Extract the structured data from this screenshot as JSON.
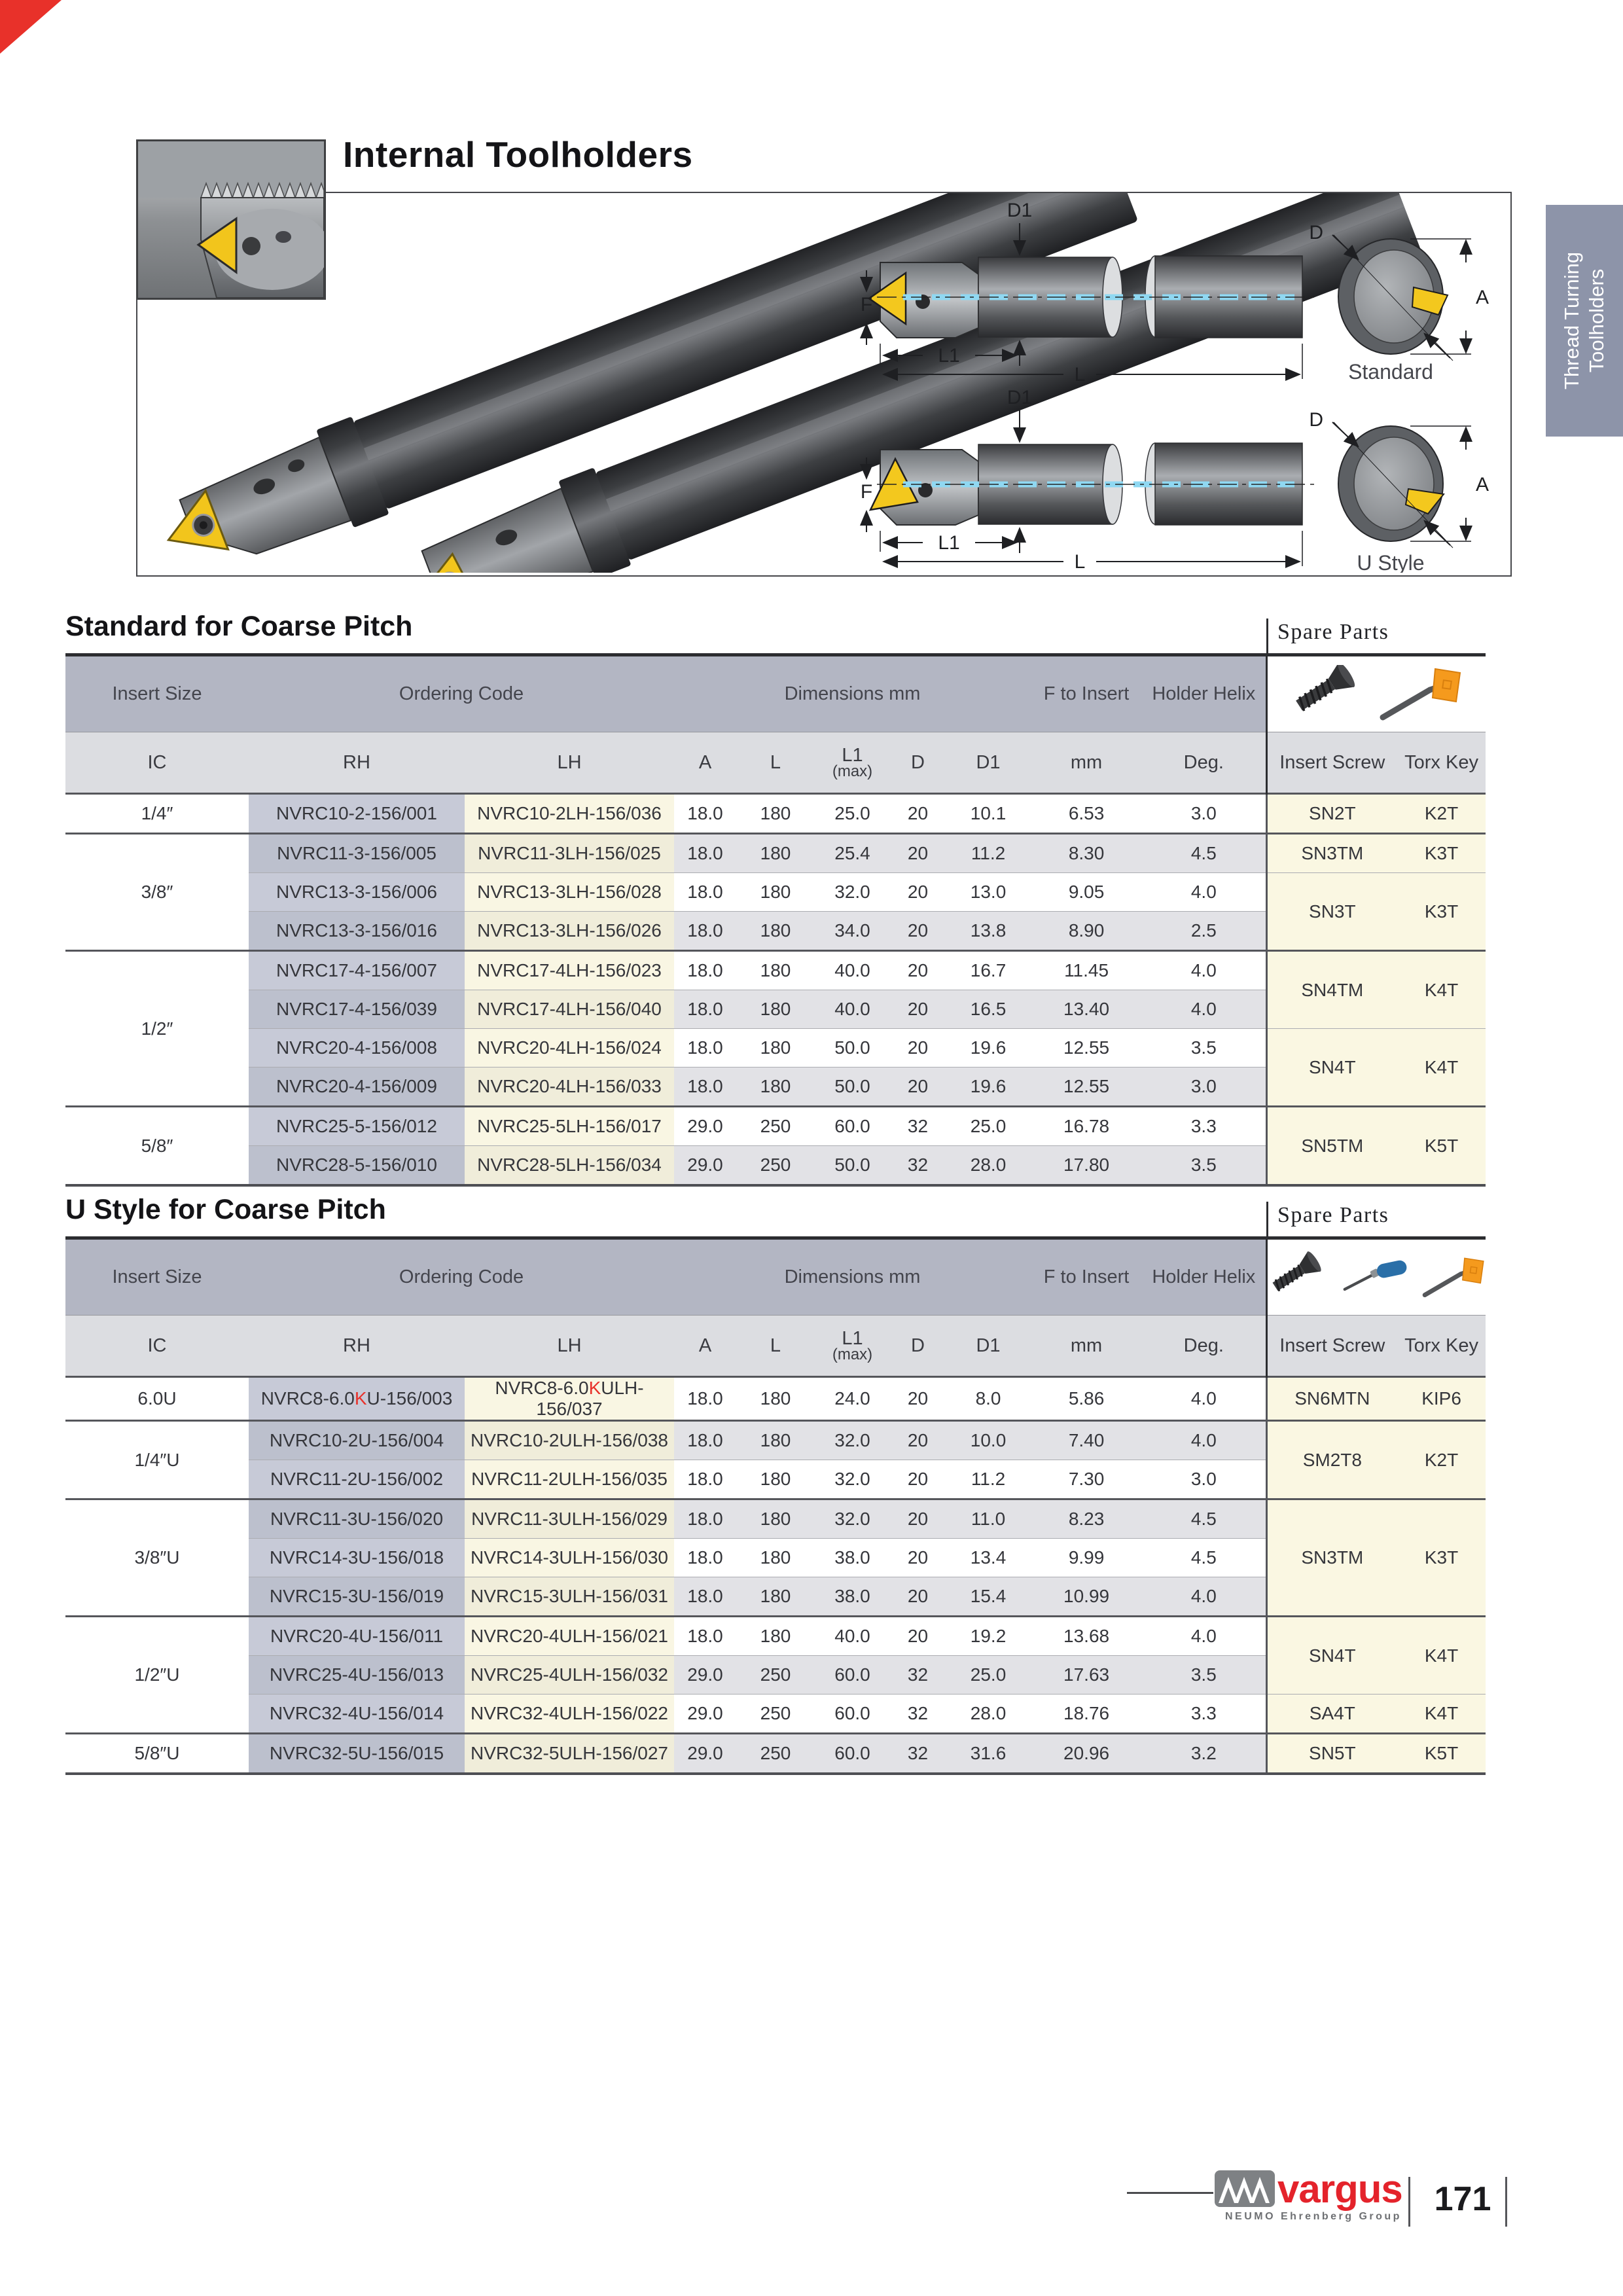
{
  "header": {
    "title": "Internal Toolholders"
  },
  "page": {
    "number": "171",
    "tab": {
      "line1": "Thread Turning",
      "line2": "Toolholders"
    }
  },
  "diagram": {
    "labels": {
      "d1": "D1",
      "f": "F",
      "l1": "L1",
      "l": "L",
      "d": "D",
      "a": "A"
    },
    "caption_standard": "Standard",
    "caption_ustyle": "U Style"
  },
  "colors": {
    "accent_red": "#e8312a",
    "brand_red": "#e4232b",
    "tab_bg": "#8d94a9",
    "header_band1": "#b3b6c3",
    "header_band2": "#dcdde1",
    "rh_column": "#c7cad7",
    "lh_column": "#f9f6e3",
    "spare_column": "#faf7e2",
    "row_alt": "#e2e2e6",
    "insert_yellow": "#f2c51c",
    "coolant_blue": "#8fd8f2"
  },
  "tables": [
    {
      "title": "Standard for Coarse Pitch",
      "spare_parts_label": "Spare Parts",
      "head": {
        "insert_size": "Insert Size",
        "ordering_code": "Ordering Code",
        "dimensions": "Dimensions mm",
        "f_to_insert": "F to Insert",
        "holder_helix": "Holder Helix",
        "ic": "IC",
        "rh": "RH",
        "lh": "LH",
        "a": "A",
        "l": "L",
        "l1": "L1",
        "l1_max": "(max)",
        "d": "D",
        "d1": "D1",
        "mm": "mm",
        "deg": "Deg.",
        "insert_screw": "Insert Screw",
        "torx_key": "Torx Key"
      },
      "ic_groups": [
        {
          "label": "1/4″",
          "rows": 1
        },
        {
          "label": "3/8″",
          "rows": 3
        },
        {
          "label": "1/2″",
          "rows": 4
        },
        {
          "label": "5/8″",
          "rows": 2
        }
      ],
      "spare_groups": [
        {
          "screw": "SN2T",
          "torx": "K2T",
          "rows": 1
        },
        {
          "screw": "SN3TM",
          "torx": "K3T",
          "rows": 1
        },
        {
          "screw": "SN3T",
          "torx": "K3T",
          "rows": 2
        },
        {
          "screw": "SN4TM",
          "torx": "K4T",
          "rows": 2
        },
        {
          "screw": "SN4T",
          "torx": "K4T",
          "rows": 2
        },
        {
          "screw": "SN5TM",
          "torx": "K5T",
          "rows": 2
        }
      ],
      "rows": [
        {
          "rh": "NVRC10-2-156/001",
          "lh": "NVRC10-2LH-156/036",
          "a": "18.0",
          "l": "180",
          "l1": "25.0",
          "d": "20",
          "d1": "10.1",
          "mm": "6.53",
          "deg": "3.0"
        },
        {
          "rh": "NVRC11-3-156/005",
          "lh": "NVRC11-3LH-156/025",
          "a": "18.0",
          "l": "180",
          "l1": "25.4",
          "d": "20",
          "d1": "11.2",
          "mm": "8.30",
          "deg": "4.5"
        },
        {
          "rh": "NVRC13-3-156/006",
          "lh": "NVRC13-3LH-156/028",
          "a": "18.0",
          "l": "180",
          "l1": "32.0",
          "d": "20",
          "d1": "13.0",
          "mm": "9.05",
          "deg": "4.0"
        },
        {
          "rh": "NVRC13-3-156/016",
          "lh": "NVRC13-3LH-156/026",
          "a": "18.0",
          "l": "180",
          "l1": "34.0",
          "d": "20",
          "d1": "13.8",
          "mm": "8.90",
          "deg": "2.5"
        },
        {
          "rh": "NVRC17-4-156/007",
          "lh": "NVRC17-4LH-156/023",
          "a": "18.0",
          "l": "180",
          "l1": "40.0",
          "d": "20",
          "d1": "16.7",
          "mm": "11.45",
          "deg": "4.0"
        },
        {
          "rh": "NVRC17-4-156/039",
          "lh": "NVRC17-4LH-156/040",
          "a": "18.0",
          "l": "180",
          "l1": "40.0",
          "d": "20",
          "d1": "16.5",
          "mm": "13.40",
          "deg": "4.0"
        },
        {
          "rh": "NVRC20-4-156/008",
          "lh": "NVRC20-4LH-156/024",
          "a": "18.0",
          "l": "180",
          "l1": "50.0",
          "d": "20",
          "d1": "19.6",
          "mm": "12.55",
          "deg": "3.5"
        },
        {
          "rh": "NVRC20-4-156/009",
          "lh": "NVRC20-4LH-156/033",
          "a": "18.0",
          "l": "180",
          "l1": "50.0",
          "d": "20",
          "d1": "19.6",
          "mm": "12.55",
          "deg": "3.0"
        },
        {
          "rh": "NVRC25-5-156/012",
          "lh": "NVRC25-5LH-156/017",
          "a": "29.0",
          "l": "250",
          "l1": "60.0",
          "d": "32",
          "d1": "25.0",
          "mm": "16.78",
          "deg": "3.3"
        },
        {
          "rh": "NVRC28-5-156/010",
          "lh": "NVRC28-5LH-156/034",
          "a": "29.0",
          "l": "250",
          "l1": "50.0",
          "d": "32",
          "d1": "28.0",
          "mm": "17.80",
          "deg": "3.5"
        }
      ]
    },
    {
      "title": "U Style for Coarse Pitch",
      "spare_parts_label": "Spare Parts",
      "head": {
        "insert_size": "Insert Size",
        "ordering_code": "Ordering Code",
        "dimensions": "Dimensions mm",
        "f_to_insert": "F to Insert",
        "holder_helix": "Holder Helix",
        "ic": "IC",
        "rh": "RH",
        "lh": "LH",
        "a": "A",
        "l": "L",
        "l1": "L1",
        "l1_max": "(max)",
        "d": "D",
        "d1": "D1",
        "mm": "mm",
        "deg": "Deg.",
        "insert_screw": "Insert Screw",
        "torx_key": "Torx Key"
      },
      "ic_groups": [
        {
          "label": "6.0U",
          "rows": 1
        },
        {
          "label": "1/4″U",
          "rows": 2
        },
        {
          "label": "3/8″U",
          "rows": 3
        },
        {
          "label": "1/2″U",
          "rows": 3
        },
        {
          "label": "5/8″U",
          "rows": 1
        }
      ],
      "spare_groups": [
        {
          "screw": "SN6MTN",
          "torx": "KIP6",
          "rows": 1
        },
        {
          "screw": "SM2T8",
          "torx": "K2T",
          "rows": 2
        },
        {
          "screw": "SN3TM",
          "torx": "K3T",
          "rows": 3
        },
        {
          "screw": "SN4T",
          "torx": "K4T",
          "rows": 2
        },
        {
          "screw": "SA4T",
          "torx": "K4T",
          "rows": 1
        },
        {
          "screw": "SN5T",
          "torx": "K5T",
          "rows": 1
        }
      ],
      "rows": [
        {
          "rh_parts": [
            "NVRC8-6.0",
            "K",
            "U-156/003"
          ],
          "lh_parts": [
            "NVRC8-6.0",
            "K",
            "ULH-156/037"
          ],
          "a": "18.0",
          "l": "180",
          "l1": "24.0",
          "d": "20",
          "d1": "8.0",
          "mm": "5.86",
          "deg": "4.0"
        },
        {
          "rh": "NVRC10-2U-156/004",
          "lh": "NVRC10-2ULH-156/038",
          "a": "18.0",
          "l": "180",
          "l1": "32.0",
          "d": "20",
          "d1": "10.0",
          "mm": "7.40",
          "deg": "4.0"
        },
        {
          "rh": "NVRC11-2U-156/002",
          "lh": "NVRC11-2ULH-156/035",
          "a": "18.0",
          "l": "180",
          "l1": "32.0",
          "d": "20",
          "d1": "11.2",
          "mm": "7.30",
          "deg": "3.0"
        },
        {
          "rh": "NVRC11-3U-156/020",
          "lh": "NVRC11-3ULH-156/029",
          "a": "18.0",
          "l": "180",
          "l1": "32.0",
          "d": "20",
          "d1": "11.0",
          "mm": "8.23",
          "deg": "4.5"
        },
        {
          "rh": "NVRC14-3U-156/018",
          "lh": "NVRC14-3ULH-156/030",
          "a": "18.0",
          "l": "180",
          "l1": "38.0",
          "d": "20",
          "d1": "13.4",
          "mm": "9.99",
          "deg": "4.5"
        },
        {
          "rh": "NVRC15-3U-156/019",
          "lh": "NVRC15-3ULH-156/031",
          "a": "18.0",
          "l": "180",
          "l1": "38.0",
          "d": "20",
          "d1": "15.4",
          "mm": "10.99",
          "deg": "4.0"
        },
        {
          "rh": "NVRC20-4U-156/011",
          "lh": "NVRC20-4ULH-156/021",
          "a": "18.0",
          "l": "180",
          "l1": "40.0",
          "d": "20",
          "d1": "19.2",
          "mm": "13.68",
          "deg": "4.0"
        },
        {
          "rh": "NVRC25-4U-156/013",
          "lh": "NVRC25-4ULH-156/032",
          "a": "29.0",
          "l": "250",
          "l1": "60.0",
          "d": "32",
          "d1": "25.0",
          "mm": "17.63",
          "deg": "3.5"
        },
        {
          "rh": "NVRC32-4U-156/014",
          "lh": "NVRC32-4ULH-156/022",
          "a": "29.0",
          "l": "250",
          "l1": "60.0",
          "d": "32",
          "d1": "28.0",
          "mm": "18.76",
          "deg": "3.3"
        },
        {
          "rh": "NVRC32-5U-156/015",
          "lh": "NVRC32-5ULH-156/027",
          "a": "29.0",
          "l": "250",
          "l1": "60.0",
          "d": "32",
          "d1": "31.6",
          "mm": "20.96",
          "deg": "3.2"
        }
      ]
    }
  ],
  "footer": {
    "brand": "vargus",
    "brand_sub": "NEUMO Ehrenberg Group",
    "page_number": "171"
  }
}
